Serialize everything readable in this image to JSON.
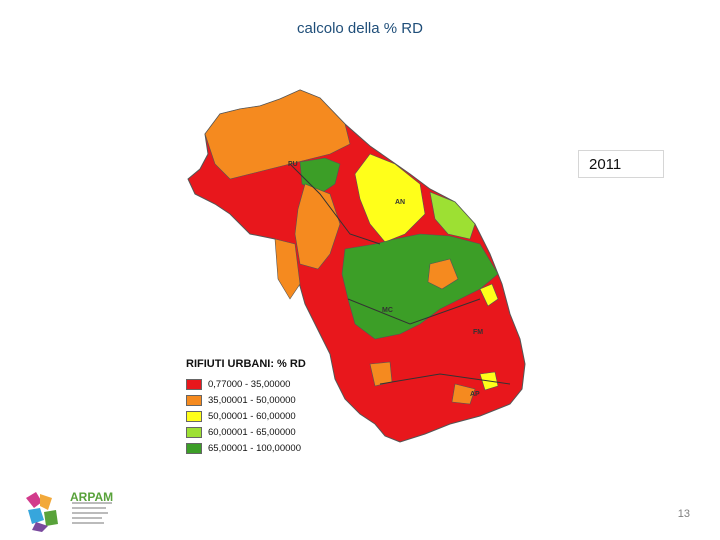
{
  "title": "calcolo della % RD",
  "year": "2011",
  "legend": {
    "title": "RIFIUTI URBANI: % RD",
    "items": [
      {
        "label": "0,77000 - 35,00000",
        "color": "#e8171c"
      },
      {
        "label": "35,00001 - 50,00000",
        "color": "#f58a1f"
      },
      {
        "label": "50,00001 - 60,00000",
        "color": "#ffff1a"
      },
      {
        "label": "60,00001 - 65,00000",
        "color": "#9de033"
      },
      {
        "label": "65,00001 - 100,00000",
        "color": "#3c9e27"
      }
    ]
  },
  "provinces": [
    "PU",
    "AN",
    "MC",
    "FM",
    "AP"
  ],
  "page_number": "13",
  "logo": {
    "name": "ARPAM"
  }
}
